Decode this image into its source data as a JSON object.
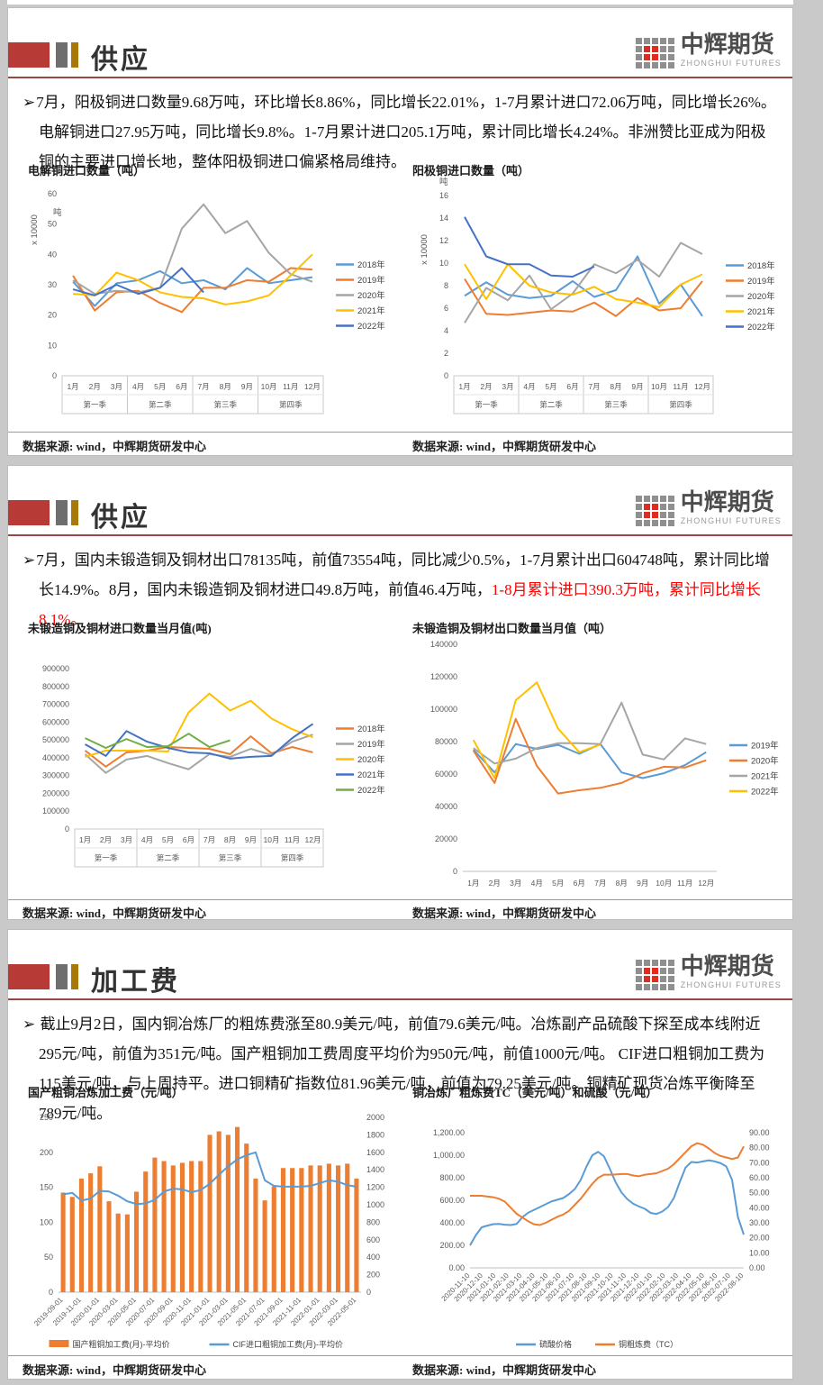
{
  "brand": {
    "name": "中辉期货",
    "name_en": "ZHONGHUI FUTURES"
  },
  "source_note": "数据来源: wind，中辉期货研发中心",
  "x_months": [
    "1月",
    "2月",
    "3月",
    "4月",
    "5月",
    "6月",
    "7月",
    "8月",
    "9月",
    "10月",
    "11月",
    "12月"
  ],
  "x_quarters": [
    "第一季",
    "第二季",
    "第三季",
    "第四季"
  ],
  "panels": [
    {
      "title": "供应",
      "bullet": "➢",
      "paragraph": [
        {
          "text": "7月，阳极铜进口数量9.68万吨，环比增长8.86%，同比增长22.01%，1-7月累计进口72.06万吨，同比增长26%。电解铜进口27.95万吨，同比增长9.8%。1-7月累计进口205.1万吨，累计同比增长4.24%。非洲赞比亚成为阳极铜的主要进口增长地，整体阳极铜进口偏紧格局维持。",
          "color": "#111111"
        }
      ]
    },
    {
      "title": "供应",
      "bullet": "➢",
      "paragraph": [
        {
          "text": "7月，国内未锻造铜及铜材出口78135吨，前值73554吨，同比减少0.5%，1-7月累计出口604748吨，累计同比增长14.9%。8月，国内未锻造铜及铜材进口49.8万吨，前值46.4万吨，",
          "color": "#111111"
        },
        {
          "text": "1-8月累计进口390.3万吨，累计同比增长8.1%。",
          "color": "#FF0000"
        }
      ]
    },
    {
      "title": "加工费",
      "bullet": "➢ ",
      "paragraph": [
        {
          "text": "截止9月2日，国内铜冶炼厂的粗炼费涨至80.9美元/吨，前值79.6美元/吨。冶炼副产品硫酸下探至成本线附近295元/吨，前值为351元/吨。国产粗铜加工费周度平均价为950元/吨，前值1000元/吨。 CIF进口粗铜加工费为115美元/吨，与上周持平。进口铜精矿指数位81.96美元/吨，前值为79.25美元/吨。铜精矿现货冶炼平衡降至789元/吨。",
          "color": "#111111"
        }
      ]
    }
  ],
  "chart_data": [
    {
      "type": "line",
      "title": "电解铜进口数量（吨）",
      "unit_rot": "x 10000",
      "unit_label": "吨",
      "x_mode": "months-quarters",
      "y_left": {
        "min": 0,
        "max": 60,
        "step": 10,
        "fmt": "int"
      },
      "legend_position": "right",
      "series": [
        {
          "name": "2018年",
          "color": "#5B9BD5",
          "type": "line",
          "values": [
            31,
            23,
            30.5,
            31.5,
            34.5,
            30.5,
            31.5,
            28.5,
            35.5,
            30.5,
            31.5,
            32.5
          ]
        },
        {
          "name": "2019年",
          "color": "#ED7D31",
          "type": "line",
          "values": [
            33,
            21.5,
            27.5,
            28,
            24,
            21,
            29,
            29,
            31.5,
            31,
            35.5,
            35
          ]
        },
        {
          "name": "2020年",
          "color": "#A5A5A5",
          "type": "line",
          "values": [
            31.5,
            27,
            28,
            27.5,
            29,
            48.5,
            56.5,
            47,
            51,
            40.5,
            33.5,
            31
          ]
        },
        {
          "name": "2021年",
          "color": "#FFC000",
          "type": "line",
          "values": [
            27,
            26.5,
            34,
            31.5,
            27.5,
            26,
            25.5,
            23.5,
            24.5,
            26.5,
            33,
            40
          ]
        },
        {
          "name": "2022年",
          "color": "#4472C4",
          "type": "line",
          "values": [
            28.5,
            26.5,
            30,
            27,
            29,
            35.5,
            27.5
          ]
        }
      ]
    },
    {
      "type": "line",
      "title": "阳极铜进口数量（吨）",
      "unit_rot": "x 10000",
      "unit_label": "吨",
      "x_mode": "months-quarters",
      "y_left": {
        "min": 0,
        "max": 16,
        "step": 2,
        "fmt": "int"
      },
      "legend_position": "right",
      "series": [
        {
          "name": "2018年",
          "color": "#5B9BD5",
          "type": "line",
          "values": [
            7.1,
            8.3,
            7.2,
            6.9,
            7.1,
            8.4,
            7.0,
            7.6,
            10.6,
            6.4,
            8.1,
            5.3
          ]
        },
        {
          "name": "2019年",
          "color": "#ED7D31",
          "type": "line",
          "values": [
            8.6,
            5.5,
            5.4,
            5.6,
            5.8,
            5.7,
            6.5,
            5.3,
            6.9,
            5.8,
            6.0,
            8.4
          ]
        },
        {
          "name": "2020年",
          "color": "#A5A5A5",
          "type": "line",
          "values": [
            4.7,
            7.8,
            6.7,
            8.9,
            5.9,
            7.3,
            9.9,
            9.1,
            10.3,
            8.8,
            11.8,
            10.8
          ]
        },
        {
          "name": "2021年",
          "color": "#FFC000",
          "type": "line",
          "values": [
            9.9,
            6.8,
            9.9,
            8.0,
            7.4,
            7.2,
            7.9,
            6.8,
            6.5,
            6.1,
            8.1,
            9.0
          ]
        },
        {
          "name": "2022年",
          "color": "#4472C4",
          "type": "line",
          "values": [
            14.1,
            10.6,
            9.9,
            9.9,
            8.9,
            8.8,
            9.7
          ]
        }
      ]
    },
    {
      "type": "line",
      "title": "未锻造铜及铜材进口数量当月值(吨)",
      "x_mode": "months-quarters",
      "y_left": {
        "min": 0,
        "max": 900000,
        "step": 100000,
        "fmt": "int"
      },
      "legend_position": "right",
      "series": [
        {
          "name": "2018年",
          "color": "#ED7D31",
          "type": "line",
          "values": [
            440000,
            350000,
            430000,
            440000,
            460000,
            455000,
            450000,
            420000,
            520000,
            425000,
            460000,
            430000
          ]
        },
        {
          "name": "2019年",
          "color": "#A5A5A5",
          "type": "line",
          "values": [
            420000,
            315000,
            390000,
            410000,
            370000,
            335000,
            420000,
            405000,
            450000,
            415000,
            490000,
            530000
          ]
        },
        {
          "name": "2020年",
          "color": "#FFC000",
          "type": "line",
          "values": [
            405000,
            440000,
            440000,
            440000,
            435000,
            655000,
            760000,
            665000,
            720000,
            620000,
            560000,
            515000
          ]
        },
        {
          "name": "2021年",
          "color": "#4472C4",
          "type": "line",
          "values": [
            475000,
            410000,
            550000,
            490000,
            455000,
            430000,
            425000,
            395000,
            405000,
            410000,
            510000,
            590000
          ]
        },
        {
          "name": "2022年",
          "color": "#70AD47",
          "type": "line",
          "values": [
            510000,
            455000,
            505000,
            460000,
            465000,
            535000,
            460000,
            498000
          ]
        }
      ]
    },
    {
      "type": "line",
      "title": "未锻造铜及铜材出口数量当月值（吨）",
      "x_mode": "months",
      "y_left": {
        "min": 0,
        "max": 140000,
        "step": 20000,
        "fmt": "int"
      },
      "legend_position": "right",
      "series": [
        {
          "name": "2019年",
          "color": "#5B9BD5",
          "type": "line",
          "values": [
            75000,
            61000,
            78500,
            75500,
            78000,
            72500,
            78500,
            61000,
            57500,
            60500,
            65500,
            73500
          ]
        },
        {
          "name": "2020年",
          "color": "#ED7D31",
          "type": "line",
          "values": [
            74500,
            54500,
            94000,
            65000,
            48000,
            50000,
            51500,
            54500,
            60500,
            64500,
            64000,
            68500
          ]
        },
        {
          "name": "2021年",
          "color": "#A5A5A5",
          "type": "line",
          "values": [
            76000,
            66500,
            69500,
            76000,
            79000,
            79000,
            78500,
            104000,
            72000,
            69000,
            82000,
            78500
          ]
        },
        {
          "name": "2022年",
          "color": "#FFC000",
          "type": "line",
          "values": [
            81000,
            57500,
            105500,
            116500,
            88000,
            73500,
            78135
          ]
        }
      ]
    },
    {
      "type": "bar",
      "title": "国产粗铜冶炼加工费（元/吨）",
      "x_mode": "rotated",
      "slots": 33,
      "tick_every": 2,
      "x_ticks": [
        "2019-09-01",
        "2019-11-01",
        "2020-01-01",
        "2020-03-01",
        "2020-05-01",
        "2020-07-01",
        "2020-09-01",
        "2020-11-01",
        "2021-01-01",
        "2021-03-01",
        "2021-05-01",
        "2021-07-01",
        "2021-09-01",
        "2021-11-01",
        "2022-01-01",
        "2022-03-01",
        "2022-05-01"
      ],
      "y_left": {
        "min": 0,
        "max": 250,
        "step": 50,
        "fmt": "int"
      },
      "y_right": {
        "min": 0,
        "max": 2000,
        "step": 200,
        "fmt": "int"
      },
      "legend_position": "bottom",
      "series": [
        {
          "name": "国产粗铜加工费(月)-平均价",
          "color": "#ED7D31",
          "type": "bar",
          "axis": "right",
          "values": [
            1140,
            1090,
            1300,
            1360,
            1440,
            1040,
            900,
            890,
            1150,
            1380,
            1540,
            1500,
            1450,
            1480,
            1500,
            1500,
            1800,
            1840,
            1800,
            1890,
            1700,
            1300,
            1050,
            1210,
            1420,
            1420,
            1420,
            1450,
            1450,
            1470,
            1450,
            1470,
            1300
          ]
        },
        {
          "name": "CIF进口粗铜加工费(月)-平均价",
          "color": "#5B9BD5",
          "type": "line",
          "axis": "left",
          "values": [
            140,
            142,
            131,
            134,
            145,
            144,
            138,
            130,
            126,
            127,
            132,
            144,
            148,
            147,
            143,
            146,
            155,
            168,
            180,
            190,
            196,
            200,
            160,
            152,
            151,
            151,
            151,
            152,
            156,
            160,
            158,
            153,
            151
          ]
        }
      ]
    },
    {
      "type": "line",
      "title": "铜冶炼厂粗炼费TC（美元/吨）和硫酸（元/吨）",
      "x_mode": "rotated",
      "line_x": "even",
      "x_ticks": [
        "2020-11-10",
        "2020-12-10",
        "2021-01-10",
        "2021-02-10",
        "2021-03-10",
        "2021-04-10",
        "2021-05-10",
        "2021-06-10",
        "2021-07-10",
        "2021-08-10",
        "2021-09-10",
        "2021-10-10",
        "2021-11-10",
        "2021-12-10",
        "2022-01-10",
        "2022-02-10",
        "2022-03-10",
        "2022-04-10",
        "2022-05-10",
        "2022-06-10",
        "2022-07-10",
        "2022-08-10"
      ],
      "y_left": {
        "min": 0,
        "max": 1200,
        "step": 200,
        "fmt": "c2"
      },
      "y_right": {
        "min": 0,
        "max": 90,
        "step": 10,
        "fmt": "c2"
      },
      "legend_position": "bottom",
      "series": [
        {
          "name": "硫酸价格",
          "color": "#5B9BD5",
          "type": "line",
          "axis": "left",
          "values": [
            200,
            290,
            360,
            375,
            388,
            390,
            383,
            380,
            390,
            450,
            490,
            515,
            540,
            565,
            590,
            605,
            620,
            655,
            700,
            780,
            900,
            1000,
            1030,
            990,
            880,
            760,
            670,
            610,
            570,
            545,
            525,
            488,
            478,
            500,
            540,
            620,
            760,
            890,
            940,
            935,
            945,
            955,
            945,
            930,
            900,
            780,
            450,
            295
          ]
        },
        {
          "name": "铜粗炼费（TC）",
          "color": "#ED7D31",
          "type": "line",
          "axis": "right",
          "values": [
            48,
            48,
            48,
            47.5,
            47,
            46,
            44,
            40,
            36,
            33.5,
            31,
            29,
            28.5,
            30,
            32,
            34,
            35.5,
            38,
            42,
            46,
            51,
            56,
            60,
            62,
            62,
            62.2,
            62.5,
            62.5,
            61.5,
            61,
            62,
            62.5,
            63,
            64.5,
            66,
            69,
            73,
            77,
            81,
            83,
            82,
            79.5,
            76.5,
            74.5,
            73.5,
            72.5,
            73.5,
            80.9
          ]
        }
      ]
    }
  ]
}
